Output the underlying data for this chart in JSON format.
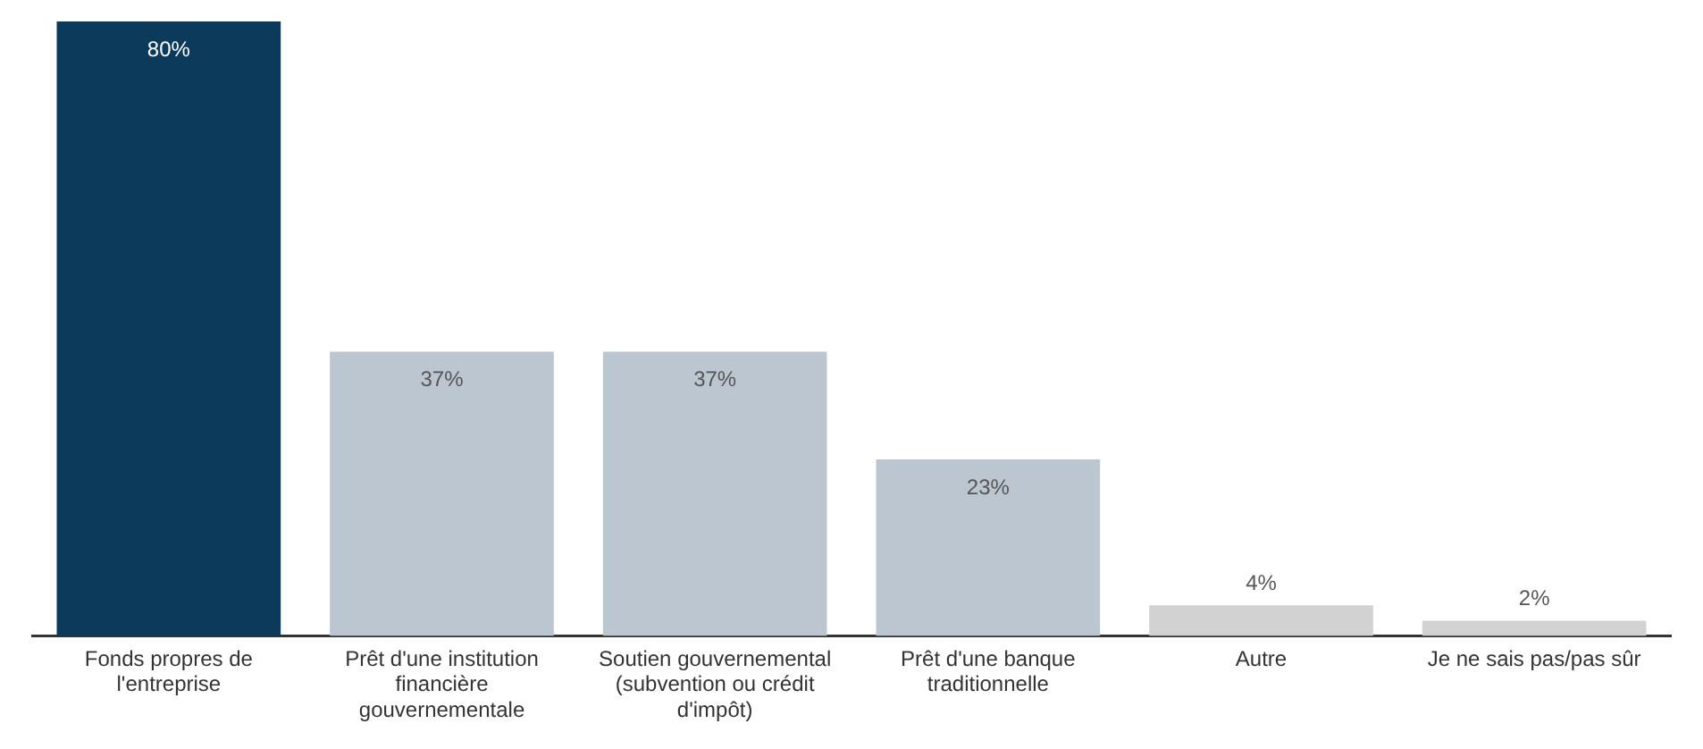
{
  "chart_data": {
    "type": "bar",
    "categories": [
      "Fonds propres de l'entreprise",
      "Prêt d'une institution financière gouvernementale",
      "Soutien gouvernemental (subvention ou crédit d'impôt)",
      "Prêt d'une banque traditionnelle",
      "Autre",
      "Je ne sais pas/pas sûr"
    ],
    "values": [
      80,
      37,
      37,
      23,
      4,
      2
    ],
    "colors": [
      "#0b3a5b",
      "#bcc6d0",
      "#bcc6d0",
      "#bcc6d0",
      "#d2d2d2",
      "#d2d2d2"
    ],
    "value_labels": [
      "80%",
      "37%",
      "37%",
      "23%",
      "4%",
      "2%"
    ],
    "grid": false
  }
}
